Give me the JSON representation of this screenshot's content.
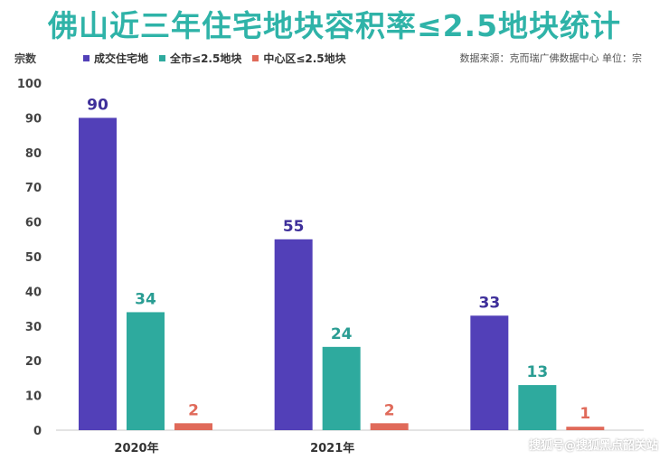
{
  "title": "佛山近三年住宅地块容积率≤2.5地块统计",
  "watermark": "搜狐号@搜狐黑点韶关站",
  "chart_data": {
    "type": "bar",
    "title": "佛山近三年住宅地块容积率≤2.5地块统计",
    "ylabel": "宗数",
    "xlabel": "",
    "ylim": [
      0,
      100
    ],
    "yticks": [
      0,
      10,
      20,
      30,
      40,
      50,
      60,
      70,
      80,
      90,
      100
    ],
    "categories": [
      "2020年",
      "2021年",
      ""
    ],
    "source_note": "数据来源：克而瑞广佛数据中心 单位：宗",
    "legend_position": "top",
    "grid": false,
    "series": [
      {
        "name": "成交住宅地",
        "color": "#5240b8",
        "label_color": "#3e2f9a",
        "values": [
          90,
          55,
          33
        ]
      },
      {
        "name": "全市≤2.5地块",
        "color": "#2eaa9e",
        "label_color": "#2a9d93",
        "values": [
          34,
          24,
          13
        ]
      },
      {
        "name": "中心区≤2.5地块",
        "color": "#e06a5a",
        "label_color": "#e06a5a",
        "values": [
          2,
          2,
          1
        ]
      }
    ]
  }
}
